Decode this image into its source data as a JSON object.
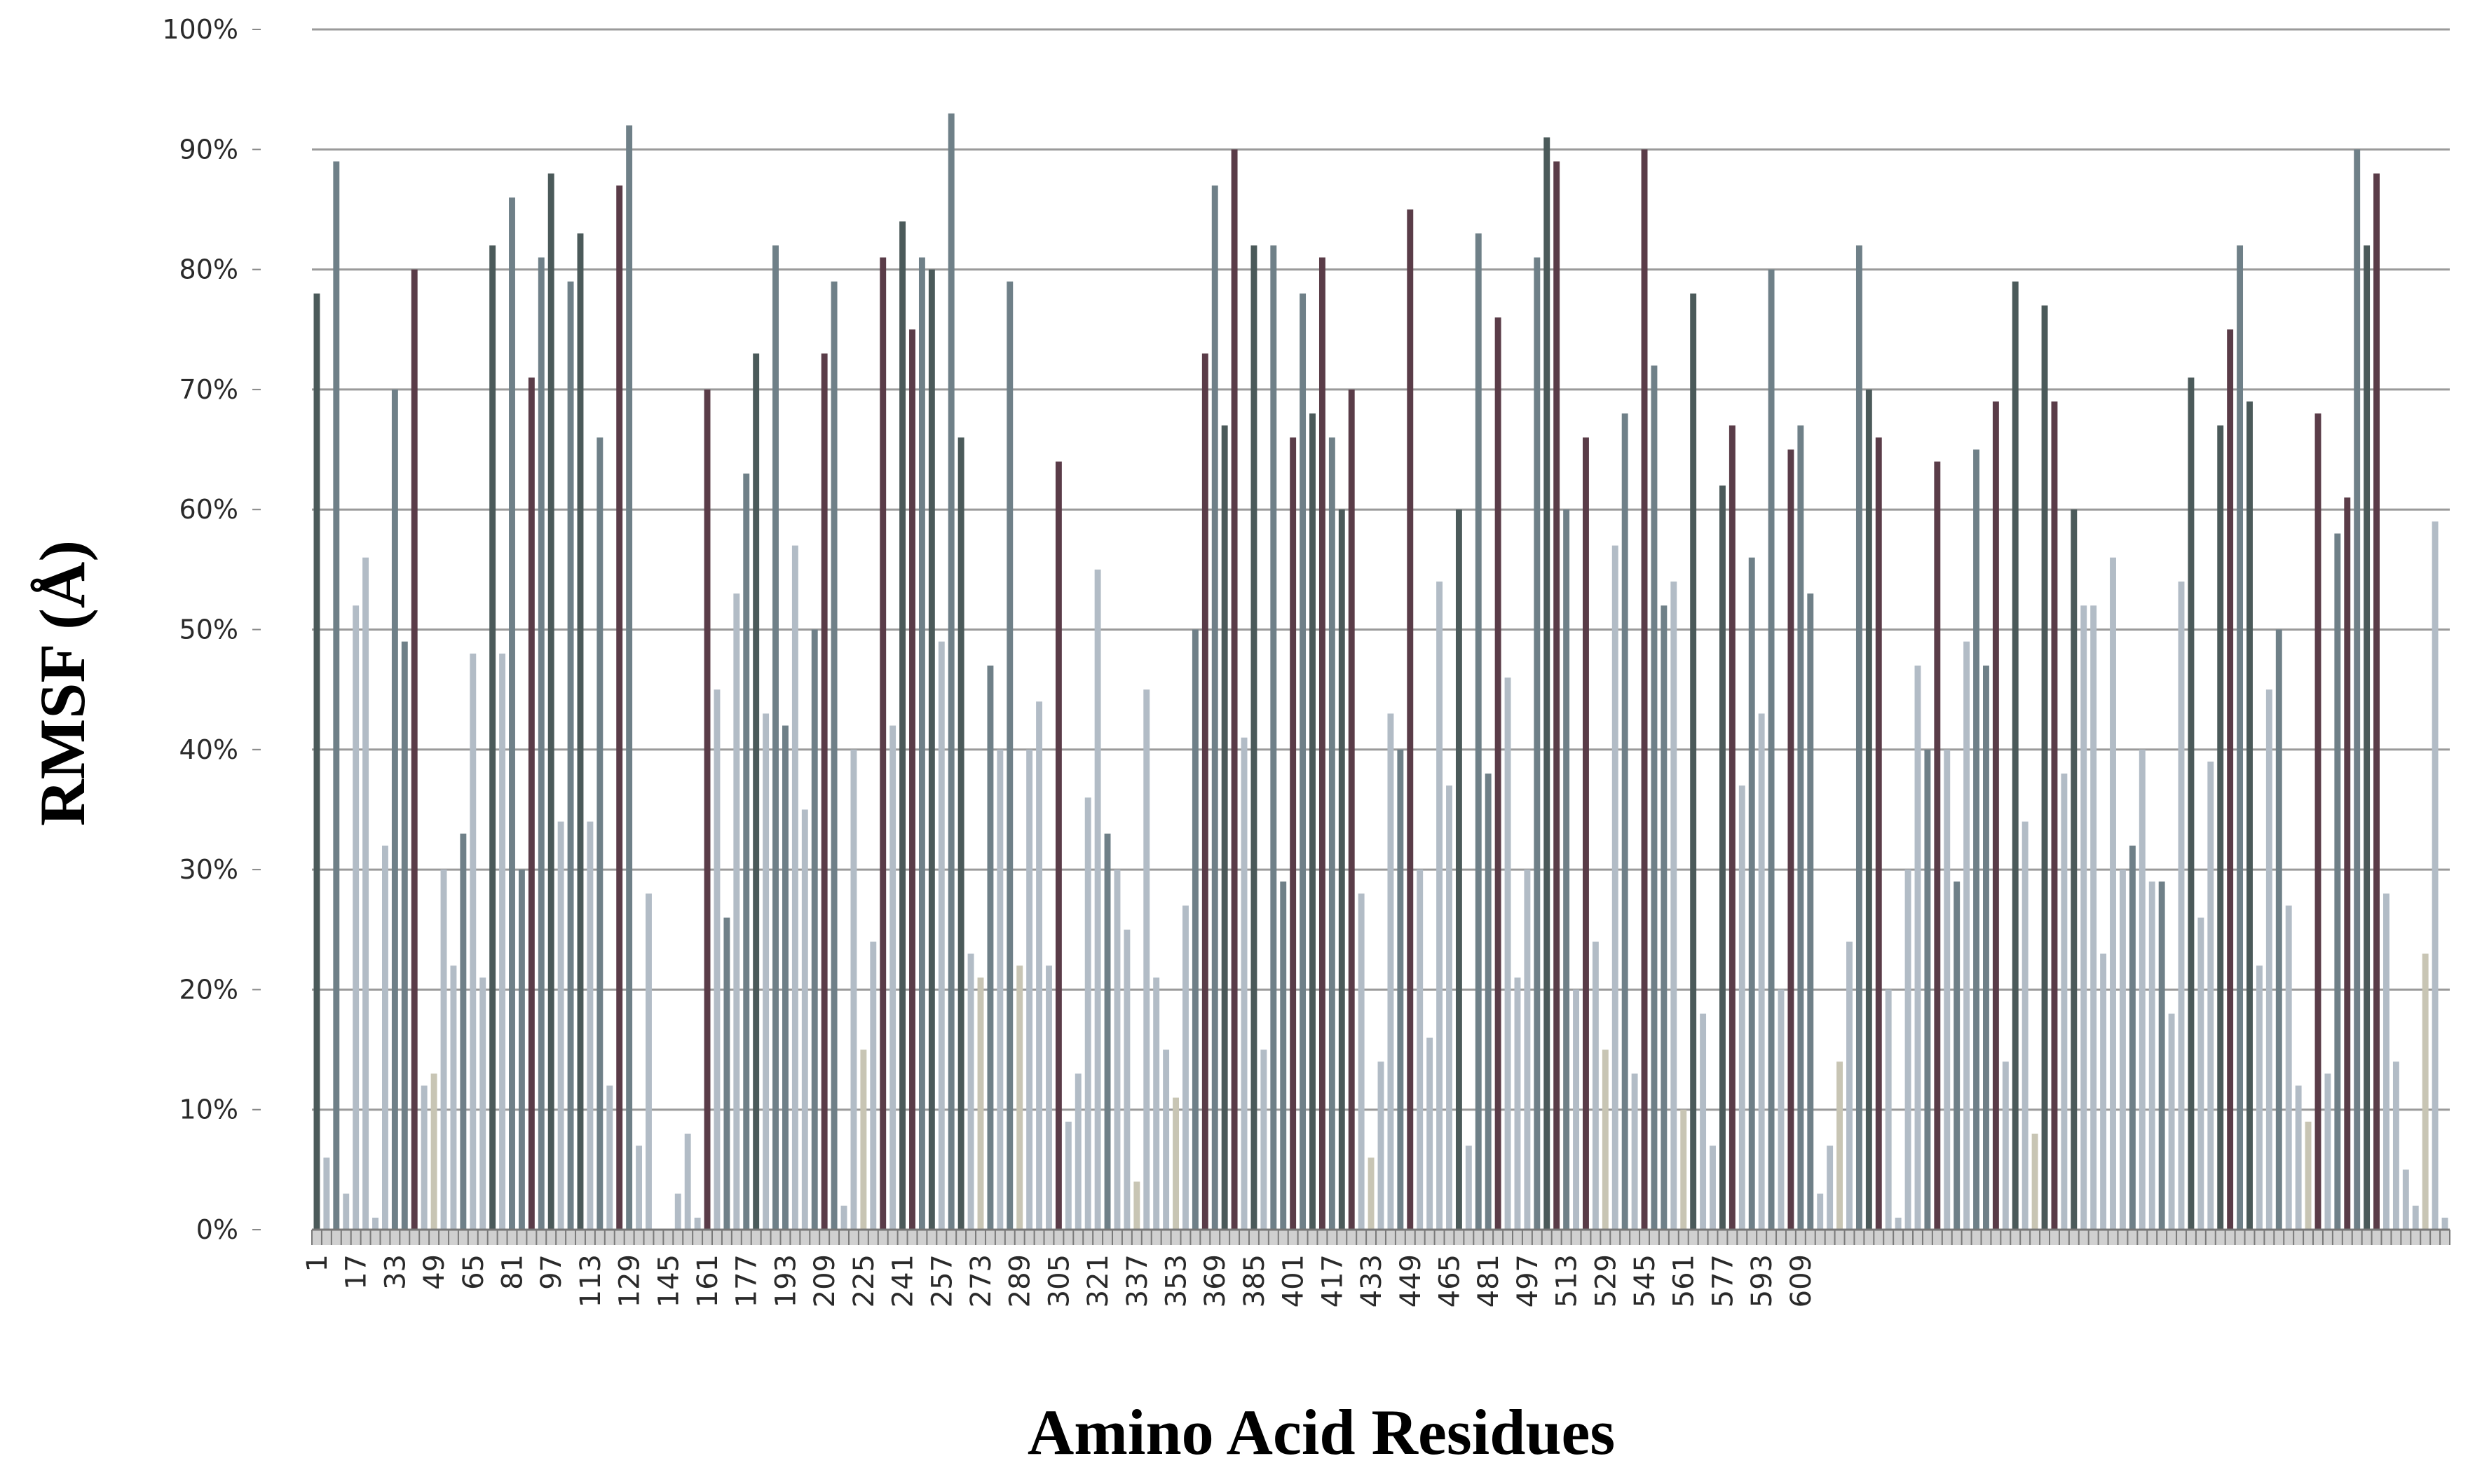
{
  "chart_data": {
    "type": "bar",
    "xlabel": "Amino Acid Residues",
    "ylabel": "RMSF (Å)",
    "ylim": [
      0,
      100
    ],
    "yticks": [
      "0%",
      "10%",
      "20%",
      "30%",
      "40%",
      "50%",
      "60%",
      "70%",
      "80%",
      "90%",
      "100%"
    ],
    "xtick_labels": [
      "1",
      "17",
      "33",
      "49",
      "65",
      "81",
      "97",
      "113",
      "129",
      "145",
      "161",
      "177",
      "193",
      "209",
      "225",
      "241",
      "257",
      "273",
      "289",
      "305",
      "321",
      "337",
      "353",
      "369",
      "385",
      "401",
      "417",
      "433",
      "449",
      "465",
      "481",
      "497",
      "513",
      "529",
      "545",
      "561",
      "577",
      "593",
      "609"
    ],
    "x_start": 1,
    "x_step": 4,
    "grid": true,
    "colors": {
      "dark": "#4b5a5a",
      "maroon": "#5a3c48",
      "steel": "#6f8088",
      "light": "#b2bcc6",
      "beige": "#c8c5b4",
      "grid": "#9a9a9a",
      "axis": "#777777"
    },
    "series": [
      {
        "values": [
          78,
          6,
          89,
          3,
          52,
          56,
          1,
          32,
          70,
          49,
          80,
          12,
          13,
          30,
          22,
          33,
          48,
          21,
          82,
          48,
          86,
          30,
          71,
          81,
          88,
          34,
          79,
          83,
          34,
          66,
          12,
          87,
          92,
          7,
          28,
          0,
          0,
          3,
          8,
          1,
          70,
          45,
          26,
          53,
          63,
          73,
          43,
          82,
          42,
          57,
          35,
          50,
          73,
          79,
          2,
          40,
          15,
          24,
          81,
          42,
          84,
          75,
          81,
          80,
          49,
          93,
          66,
          23,
          21,
          47,
          40,
          79,
          22,
          40,
          44,
          22,
          64,
          9,
          13,
          36,
          55,
          33,
          30,
          25,
          4,
          45,
          21,
          15,
          11,
          27,
          50,
          73,
          87,
          67,
          90,
          41,
          82,
          15,
          82,
          29,
          66,
          78,
          68,
          81,
          66,
          60,
          70,
          28,
          6,
          14,
          43,
          40,
          85,
          30,
          16,
          54,
          37,
          60,
          7,
          83,
          38,
          76,
          46,
          21,
          30,
          81,
          91,
          89,
          60,
          20,
          66,
          24,
          15,
          57,
          68,
          13,
          90,
          72,
          52,
          54,
          10,
          78,
          18,
          7,
          62,
          67,
          37,
          56,
          43,
          80,
          20,
          65,
          67,
          53,
          3,
          7,
          14,
          24,
          82,
          70,
          66,
          20,
          1,
          30,
          47,
          40,
          64,
          40,
          29,
          49,
          65,
          47,
          69,
          14,
          79,
          34,
          8,
          77,
          69,
          38,
          60,
          52,
          52,
          23,
          56,
          30,
          32,
          40,
          29,
          29,
          18,
          54,
          71,
          26,
          39,
          67,
          75,
          82,
          69,
          22,
          45,
          50,
          27,
          12,
          9,
          68,
          13,
          58,
          61,
          90,
          82,
          88,
          28,
          14,
          5,
          2,
          23,
          59,
          1
        ]
      }
    ]
  }
}
